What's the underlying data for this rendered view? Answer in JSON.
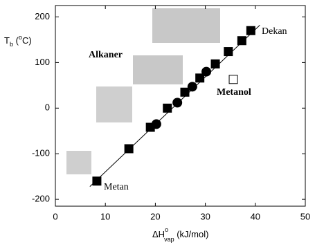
{
  "chart_data": {
    "type": "scatter",
    "ylabel_parts": [
      "T",
      "b",
      " (",
      "o",
      "C)"
    ],
    "xlabel_parts": [
      "ΔH",
      "o",
      "vap",
      "  (kJ/mol)"
    ],
    "annotations": [
      "Alkaner",
      "Metanol",
      "Metan",
      "Dekan"
    ],
    "xlim": [
      0,
      50
    ],
    "ylim": [
      -215,
      225
    ],
    "xticks": [
      0,
      10,
      20,
      30,
      40,
      50
    ],
    "yticks": [
      -200,
      -100,
      0,
      100,
      200
    ],
    "series": [
      {
        "marker": "square",
        "color": "#000000",
        "filled": true,
        "x": [
          8.3,
          14.7,
          19,
          22.4,
          25.9,
          28.9,
          32,
          34.6,
          37.3,
          39.1
        ],
        "values": [
          -160,
          -89,
          -42,
          0,
          35,
          66,
          97,
          124,
          148,
          170
        ]
      },
      {
        "marker": "circle",
        "color": "#000000",
        "filled": true,
        "x": [
          20.2,
          24.4,
          27.4,
          30.2
        ],
        "values": [
          -35,
          12,
          47,
          80
        ]
      },
      {
        "marker": "square",
        "color": "#000000",
        "filled": false,
        "x": [
          35.6
        ],
        "values": [
          63
        ]
      }
    ],
    "fit_line": {
      "x": [
        6.9,
        40.9
      ],
      "values": [
        -172,
        182
      ],
      "color": "#000000"
    }
  }
}
